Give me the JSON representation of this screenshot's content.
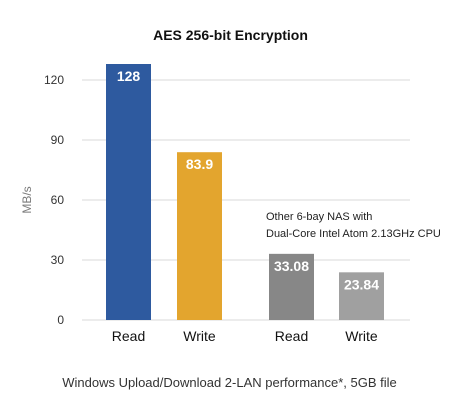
{
  "chart_data": {
    "type": "bar",
    "title": "AES 256-bit Encryption",
    "xlabel": "",
    "ylabel": "MB/s",
    "ylim": [
      0,
      130
    ],
    "yticks": [
      0,
      30,
      60,
      90,
      120
    ],
    "grid": true,
    "categories": [
      "Read",
      "Write",
      "Read",
      "Write"
    ],
    "values": [
      128,
      83.9,
      33.08,
      23.84
    ],
    "value_labels": [
      "128",
      "83.9",
      "33.08",
      "23.84"
    ],
    "colors": [
      "#2E5A9F",
      "#E3A52E",
      "#878787",
      "#A0A0A0"
    ],
    "annotation_lines": [
      "Other 6-bay NAS with",
      "Dual-Core Intel Atom 2.13GHz CPU"
    ],
    "footer": "Windows Upload/Download 2-LAN performance*, 5GB file"
  }
}
